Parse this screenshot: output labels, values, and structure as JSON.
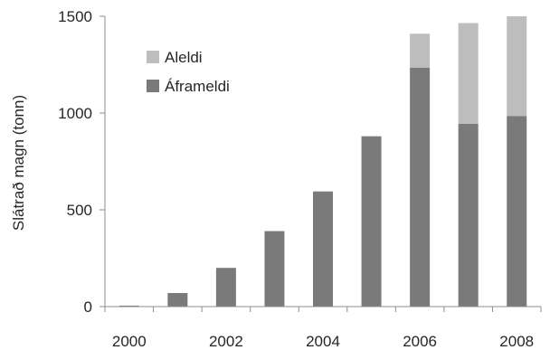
{
  "chart_data": {
    "type": "bar",
    "stacked": true,
    "categories": [
      "2000",
      "2001",
      "2002",
      "2003",
      "2004",
      "2005",
      "2006",
      "2007",
      "2008"
    ],
    "x_tick_labels": [
      "2000",
      "2002",
      "2004",
      "2006",
      "2008"
    ],
    "series": [
      {
        "name": "Áframeldi",
        "values": [
          5,
          70,
          200,
          390,
          595,
          880,
          1235,
          945,
          985
        ],
        "color": "#7a7a7a"
      },
      {
        "name": "Aleldi",
        "values": [
          0,
          0,
          0,
          0,
          0,
          0,
          175,
          520,
          515
        ],
        "color": "#bdbdbd"
      }
    ],
    "title": "",
    "xlabel": "",
    "ylabel": "Slátrað magn (tonn)",
    "ylim": [
      0,
      1500
    ],
    "yticks": [
      0,
      500,
      1000,
      1500
    ],
    "grid": false,
    "legend_position": "top-left",
    "legend_order": [
      "Aleldi",
      "Áframeldi"
    ]
  }
}
